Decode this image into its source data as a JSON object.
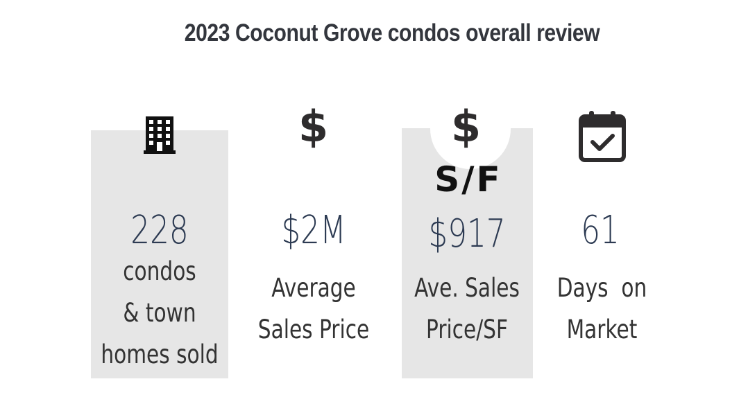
{
  "title": "2023 Coconut Grove condos overall review",
  "stats": [
    {
      "icon": "building-icon",
      "value": "228",
      "caption_lines": [
        "condos",
        "& town",
        "homes sold"
      ]
    },
    {
      "icon": "dollar-icon",
      "icon_text": "$",
      "value": "$2M",
      "caption_lines": [
        "Average",
        "Sales Price"
      ]
    },
    {
      "icon": "dollar-per-sf-icon",
      "icon_text": "$",
      "icon_subtext": "S/F",
      "value": "$917",
      "caption_lines": [
        "Ave. Sales",
        "Price/SF"
      ]
    },
    {
      "icon": "calendar-check-icon",
      "value": "61",
      "caption_lines": [
        "Days  on",
        "Market"
      ]
    }
  ],
  "colors": {
    "panel": "#e6e6e6",
    "title": "#33363d",
    "value": "#2c3a52",
    "caption": "#333333",
    "icon": "#2e2c2d"
  }
}
